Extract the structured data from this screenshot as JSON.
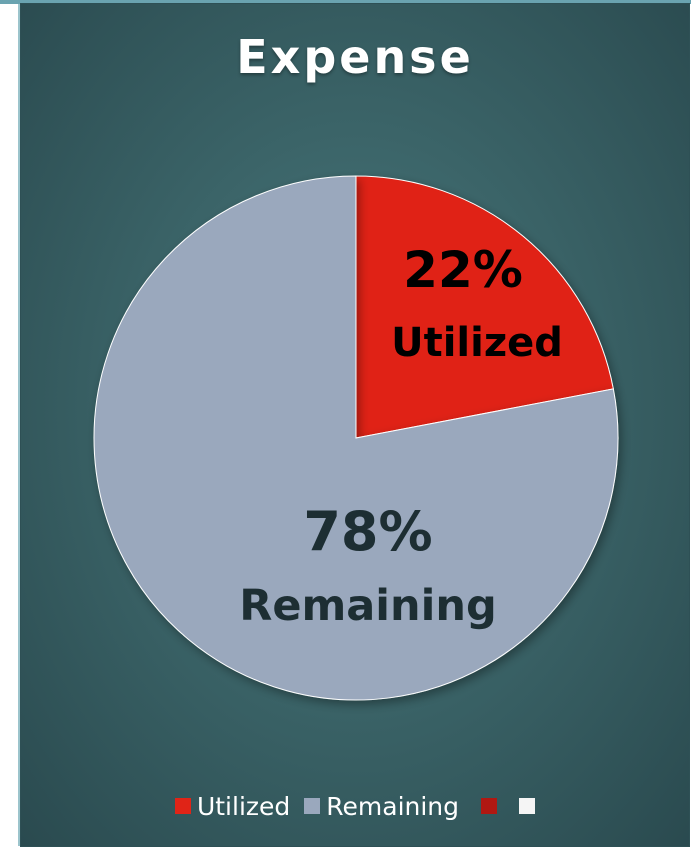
{
  "chart_data": {
    "type": "pie",
    "title": "Expense",
    "slices": [
      {
        "name": "Utilized",
        "value": 22,
        "label_pct": "22%",
        "label_text": "Utilized",
        "color": "#e02417",
        "text_color": "#000000"
      },
      {
        "name": "Remaining",
        "value": 78,
        "label_pct": "78%",
        "label_text": "Remaining",
        "color": "#9aa8bd",
        "text_color": "#1d2e33"
      }
    ],
    "legend": {
      "placement": "bottom",
      "entries": [
        {
          "label": "Utilized",
          "color": "#e02417"
        },
        {
          "label": "Remaining",
          "color": "#9aa8bd"
        },
        {
          "label": "",
          "color": "#b01812"
        },
        {
          "label": "",
          "color": "#f5f5f5"
        }
      ]
    }
  }
}
